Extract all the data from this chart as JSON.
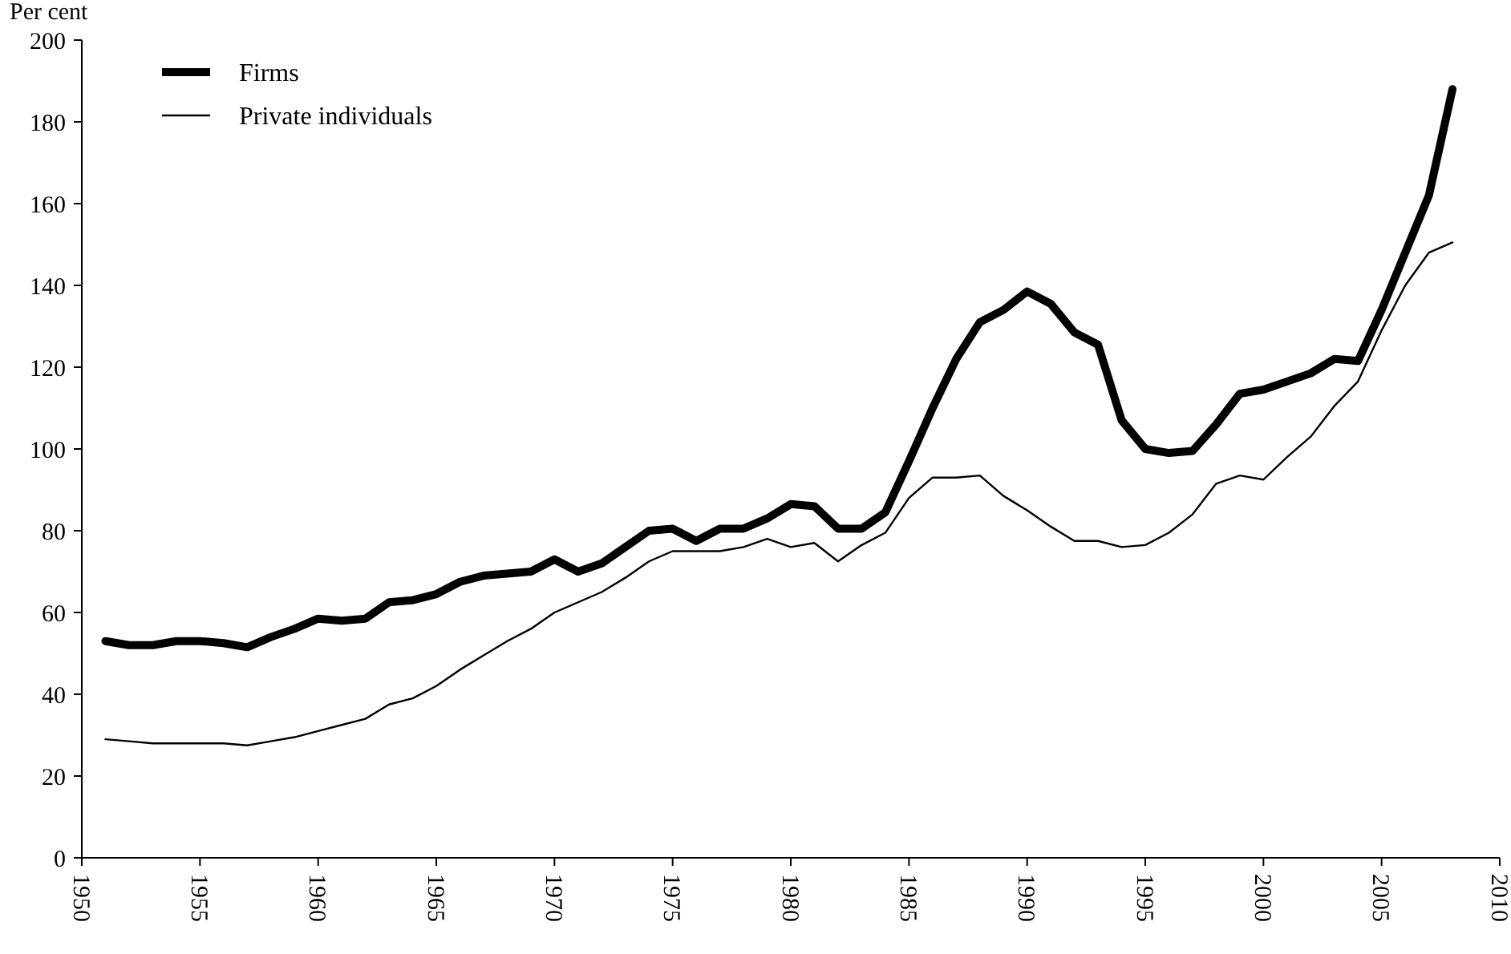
{
  "chart_data": {
    "type": "line",
    "ylabel": "Per cent",
    "x": [
      1951,
      1952,
      1953,
      1954,
      1955,
      1956,
      1957,
      1958,
      1959,
      1960,
      1961,
      1962,
      1963,
      1964,
      1965,
      1966,
      1967,
      1968,
      1969,
      1970,
      1971,
      1972,
      1973,
      1974,
      1975,
      1976,
      1977,
      1978,
      1979,
      1980,
      1981,
      1982,
      1983,
      1984,
      1985,
      1986,
      1987,
      1988,
      1989,
      1990,
      1991,
      1992,
      1993,
      1994,
      1995,
      1996,
      1997,
      1998,
      1999,
      2000,
      2001,
      2002,
      2003,
      2004,
      2005,
      2006,
      2007,
      2008
    ],
    "series": [
      {
        "name": "Firms",
        "color": "#000000",
        "values": [
          53,
          52,
          52,
          53,
          53,
          52.5,
          51.5,
          54,
          56,
          58.5,
          58,
          58.5,
          62.5,
          63,
          64.5,
          67.5,
          69,
          69.5,
          70,
          73,
          70,
          72,
          76,
          80,
          80.5,
          77.5,
          80.5,
          80.5,
          83,
          86.5,
          86,
          80.5,
          80.5,
          84.5,
          97,
          110,
          122,
          131,
          134,
          138.5,
          135.5,
          128.5,
          125.5,
          107,
          100,
          99,
          99.5,
          106,
          113.5,
          114.5,
          116.5,
          118.5,
          122,
          121.5,
          134,
          148,
          162,
          188
        ]
      },
      {
        "name": "Private individuals",
        "color": "#000000",
        "values": [
          29,
          28.5,
          28,
          28,
          28,
          28,
          27.5,
          28.5,
          29.5,
          31,
          32.5,
          34,
          37.5,
          39,
          42,
          46,
          49.5,
          53,
          56,
          60,
          62.5,
          65,
          68.5,
          72.5,
          75,
          75,
          75,
          76,
          78,
          76,
          77,
          72.5,
          76.5,
          79.5,
          88,
          93,
          93,
          93.5,
          88.5,
          85,
          81,
          77.5,
          77.5,
          76,
          76.5,
          79.5,
          84,
          91.5,
          93.5,
          92.5,
          98,
          103,
          110.5,
          116.5,
          129,
          140,
          148,
          150.5
        ]
      }
    ],
    "xlim": [
      1950,
      2010
    ],
    "xticks": [
      1950,
      1955,
      1960,
      1965,
      1970,
      1975,
      1980,
      1985,
      1990,
      1995,
      2000,
      2005,
      2010
    ],
    "ylim": [
      0,
      200
    ],
    "yticks": [
      0,
      20,
      40,
      60,
      80,
      100,
      120,
      140,
      160,
      180,
      200
    ],
    "grid": false,
    "legend": "top left",
    "line_style": "solid",
    "marker": "none"
  }
}
